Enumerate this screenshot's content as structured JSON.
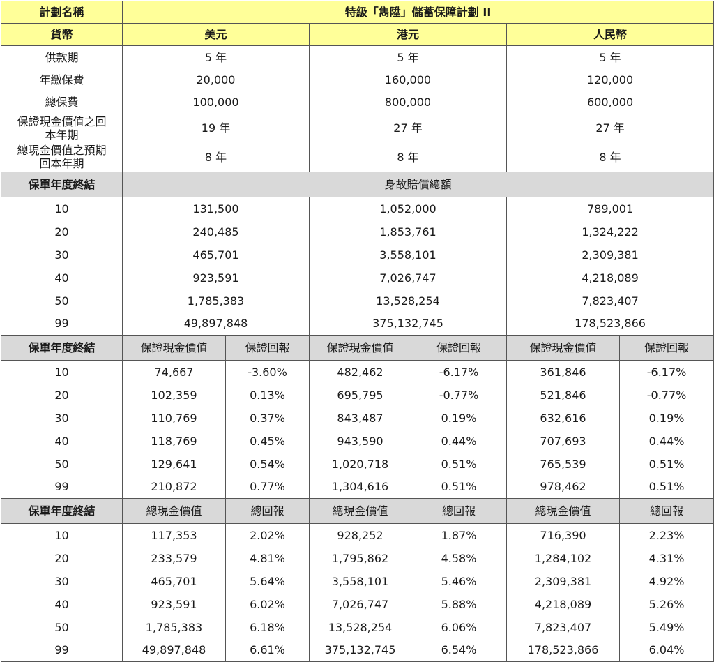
{
  "header": {
    "plan_name_label": "計劃名稱",
    "plan_title": "特級「雋陞」儲蓄保障計劃 II",
    "currency_label": "貨幣",
    "currencies": [
      "美元",
      "港元",
      "人民幣"
    ]
  },
  "summary": {
    "rows": [
      {
        "label": "供款期",
        "values": [
          "5 年",
          "5 年",
          "5 年"
        ]
      },
      {
        "label": "年繳保費",
        "values": [
          "20,000",
          "160,000",
          "120,000"
        ]
      },
      {
        "label": "總保費",
        "values": [
          "100,000",
          "800,000",
          "600,000"
        ]
      },
      {
        "label": "保證現金價值之回本年期",
        "values": [
          "19 年",
          "27 年",
          "27 年"
        ]
      },
      {
        "label": "總現金價值之預期回本年期",
        "values": [
          "8 年",
          "8 年",
          "8 年"
        ]
      }
    ]
  },
  "death_benefit": {
    "section_label": "保單年度終結",
    "column_label": "身故賠償總額",
    "rows": [
      {
        "year": "10",
        "values": [
          "131,500",
          "1,052,000",
          "789,001"
        ]
      },
      {
        "year": "20",
        "values": [
          "240,485",
          "1,853,761",
          "1,324,222"
        ]
      },
      {
        "year": "30",
        "values": [
          "465,701",
          "3,558,101",
          "2,309,381"
        ]
      },
      {
        "year": "40",
        "values": [
          "923,591",
          "7,026,747",
          "4,218,089"
        ]
      },
      {
        "year": "50",
        "values": [
          "1,785,383",
          "13,528,254",
          "7,823,407"
        ]
      },
      {
        "year": "99",
        "values": [
          "49,897,848",
          "375,132,745",
          "178,523,866"
        ]
      }
    ]
  },
  "guaranteed": {
    "section_label": "保單年度終結",
    "value_label": "保證現金價值",
    "return_label": "保證回報",
    "rows": [
      {
        "year": "10",
        "values": [
          "74,667",
          "-3.60%",
          "482,462",
          "-6.17%",
          "361,846",
          "-6.17%"
        ]
      },
      {
        "year": "20",
        "values": [
          "102,359",
          "0.13%",
          "695,795",
          "-0.77%",
          "521,846",
          "-0.77%"
        ]
      },
      {
        "year": "30",
        "values": [
          "110,769",
          "0.37%",
          "843,487",
          "0.19%",
          "632,616",
          "0.19%"
        ]
      },
      {
        "year": "40",
        "values": [
          "118,769",
          "0.45%",
          "943,590",
          "0.44%",
          "707,693",
          "0.44%"
        ]
      },
      {
        "year": "50",
        "values": [
          "129,641",
          "0.54%",
          "1,020,718",
          "0.51%",
          "765,539",
          "0.51%"
        ]
      },
      {
        "year": "99",
        "values": [
          "210,872",
          "0.77%",
          "1,304,616",
          "0.51%",
          "978,462",
          "0.51%"
        ]
      }
    ]
  },
  "total": {
    "section_label": "保單年度終結",
    "value_label": "總現金價值",
    "return_label": "總回報",
    "rows": [
      {
        "year": "10",
        "values": [
          "117,353",
          "2.02%",
          "928,252",
          "1.87%",
          "716,390",
          "2.23%"
        ]
      },
      {
        "year": "20",
        "values": [
          "233,579",
          "4.81%",
          "1,795,862",
          "4.58%",
          "1,284,102",
          "4.31%"
        ]
      },
      {
        "year": "30",
        "values": [
          "465,701",
          "5.64%",
          "3,558,101",
          "5.46%",
          "2,309,381",
          "4.92%"
        ]
      },
      {
        "year": "40",
        "values": [
          "923,591",
          "6.02%",
          "7,026,747",
          "5.88%",
          "4,218,089",
          "5.26%"
        ]
      },
      {
        "year": "50",
        "values": [
          "1,785,383",
          "6.18%",
          "13,528,254",
          "6.06%",
          "7,823,407",
          "5.49%"
        ]
      },
      {
        "year": "99",
        "values": [
          "49,897,848",
          "6.61%",
          "375,132,745",
          "6.54%",
          "178,523,866",
          "6.04%"
        ]
      }
    ]
  },
  "colors": {
    "header_yellow": "#ffff99",
    "section_gray": "#d9d9d9",
    "border": "#555555"
  }
}
